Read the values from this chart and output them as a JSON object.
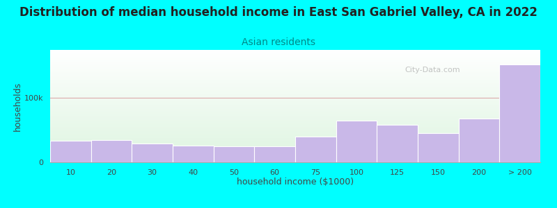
{
  "title": "Distribution of median household income in East San Gabriel Valley, CA in 2022",
  "subtitle": "Asian residents",
  "xlabel": "household income ($1000)",
  "ylabel": "households",
  "background_color": "#00FFFF",
  "bar_color": "#c9b8e8",
  "categories": [
    "10",
    "20",
    "30",
    "40",
    "50",
    "60",
    "75",
    "100",
    "125",
    "150",
    "200",
    "> 200"
  ],
  "values": [
    33000,
    35000,
    29000,
    26000,
    25000,
    25000,
    40000,
    65000,
    58000,
    45000,
    68000,
    152000
  ],
  "ylim": [
    0,
    175000
  ],
  "yticks": [
    0,
    100000
  ],
  "ytick_labels": [
    "0",
    "100k"
  ],
  "watermark": "City-Data.com",
  "title_fontsize": 12,
  "subtitle_fontsize": 10,
  "axis_label_fontsize": 9,
  "tick_fontsize": 8,
  "subtitle_color": "#008888",
  "title_color": "#222222",
  "axis_color": "#444444"
}
